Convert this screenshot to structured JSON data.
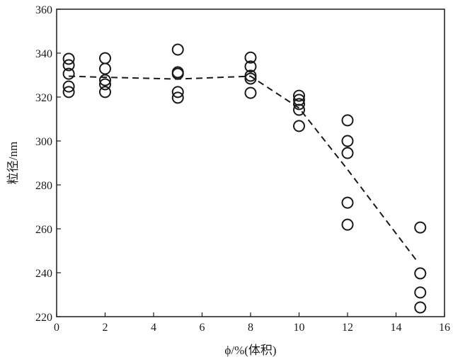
{
  "chart_data": {
    "type": "scatter",
    "title": "",
    "xlabel": "ϕ/%(体积)",
    "ylabel": "粒径/nm",
    "xlim": [
      0,
      16
    ],
    "ylim": [
      220,
      360
    ],
    "xticks": [
      0,
      2,
      4,
      6,
      8,
      10,
      12,
      14,
      16
    ],
    "yticks": [
      220,
      240,
      260,
      280,
      300,
      320,
      340,
      360
    ],
    "grid": false,
    "points": [
      {
        "x": 0.5,
        "y": [
          337.4,
          334.5,
          330.6,
          324.8,
          322.3
        ]
      },
      {
        "x": 2,
        "y": [
          337.7,
          332.9,
          327.7,
          325.8,
          322.3
        ]
      },
      {
        "x": 5,
        "y": [
          341.6,
          331.3,
          330.6,
          322.3,
          319.7
        ]
      },
      {
        "x": 8,
        "y": [
          338.0,
          333.9,
          329.7,
          328.4,
          321.9
        ]
      },
      {
        "x": 10,
        "y": [
          320.6,
          318.7,
          316.8,
          314.2,
          306.8
        ]
      },
      {
        "x": 12,
        "y": [
          309.4,
          300.0,
          294.5,
          271.9,
          261.9
        ]
      },
      {
        "x": 15,
        "y": [
          260.6,
          239.7,
          231.0,
          224.2
        ]
      }
    ],
    "trend_line": {
      "style": "dashed",
      "x": [
        0.5,
        2,
        5,
        8,
        10,
        12,
        14.9
      ],
      "y": [
        329.5,
        329.0,
        328.2,
        329.5,
        315.0,
        287.0,
        244.8
      ]
    },
    "colors": {
      "marker": "#1a1a1a",
      "line": "#1a1a1a"
    }
  }
}
